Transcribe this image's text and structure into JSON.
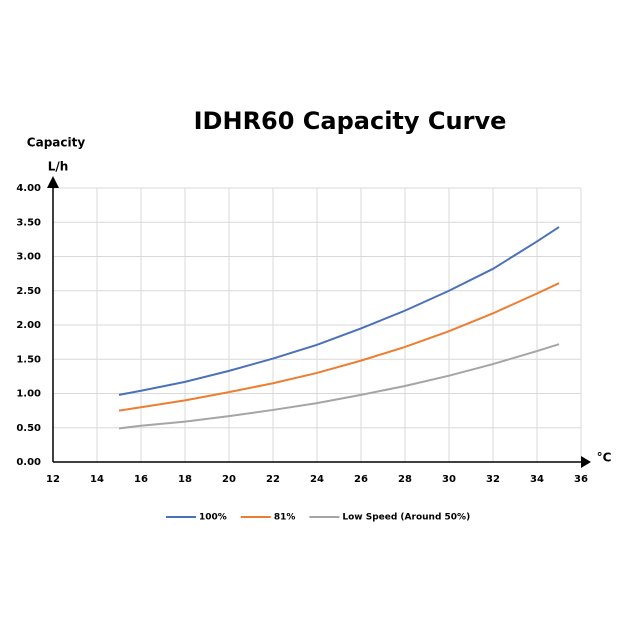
{
  "chart_data": {
    "type": "line",
    "title": "IDHR60  Capacity Curve",
    "y_label": "Capacity",
    "y_unit": "L/h",
    "x_label": "°C",
    "x": [
      15,
      16,
      18,
      20,
      22,
      24,
      26,
      28,
      30,
      32,
      34,
      35
    ],
    "series": [
      {
        "name": "100%",
        "color": "#4a72b8",
        "values": [
          0.98,
          1.04,
          1.17,
          1.33,
          1.51,
          1.71,
          1.95,
          2.21,
          2.5,
          2.82,
          3.22,
          3.43
        ]
      },
      {
        "name": "81%",
        "color": "#ed7d31",
        "values": [
          0.75,
          0.8,
          0.9,
          1.02,
          1.15,
          1.3,
          1.48,
          1.68,
          1.91,
          2.17,
          2.46,
          2.61
        ]
      },
      {
        "name": "Low Speed (Around 50%)",
        "color": "#a5a5a5",
        "values": [
          0.49,
          0.53,
          0.59,
          0.67,
          0.76,
          0.86,
          0.98,
          1.11,
          1.26,
          1.43,
          1.62,
          1.72
        ]
      }
    ],
    "xlim": [
      12,
      36
    ],
    "xticks": [
      12,
      14,
      16,
      18,
      20,
      22,
      24,
      26,
      28,
      30,
      32,
      34,
      36
    ],
    "ylim": [
      0,
      4
    ],
    "yticks": [
      {
        "value": 0,
        "label": "0.00"
      },
      {
        "value": 0.5,
        "label": "0.50"
      },
      {
        "value": 1,
        "label": "1.00"
      },
      {
        "value": 1.5,
        "label": "1.50"
      },
      {
        "value": 2,
        "label": "2.00"
      },
      {
        "value": 2.5,
        "label": "2.50"
      },
      {
        "value": 3,
        "label": "3.00"
      },
      {
        "value": 3.5,
        "label": "3.50"
      },
      {
        "value": 4,
        "label": "4.00"
      }
    ],
    "grid": true,
    "legend": "bottom"
  }
}
